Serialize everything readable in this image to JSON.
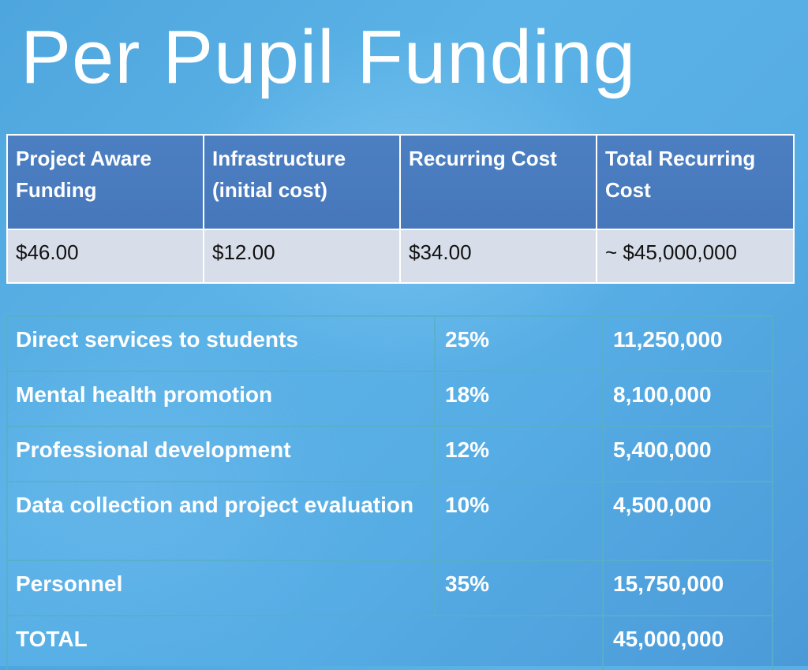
{
  "title": "Per Pupil Funding",
  "summary": {
    "headers": [
      "Project Aware Funding",
      "Infrastructure (initial cost)",
      "Recurring Cost",
      "Total Recurring Cost"
    ],
    "values": [
      "$46.00",
      "$12.00",
      "$34.00",
      "~ $45,000,000"
    ]
  },
  "allocation": {
    "rows": [
      {
        "label": "Direct services to students",
        "percent": "25%",
        "amount": "11,250,000"
      },
      {
        "label": "Mental health promotion",
        "percent": "18%",
        "amount": "8,100,000"
      },
      {
        "label": "Professional development",
        "percent": "12%",
        "amount": "5,400,000"
      },
      {
        "label": "Data collection and project evaluation",
        "percent": "10%",
        "amount": "4,500,000"
      },
      {
        "label": "Personnel",
        "percent": "35%",
        "amount": "15,750,000"
      }
    ],
    "total": {
      "label": "TOTAL",
      "amount": "45,000,000"
    }
  },
  "colors": {
    "background": "#55ace3",
    "header_fill": "#4a7bbf",
    "value_fill": "#d7dde9",
    "allocation_border": "#58afc8",
    "text_light": "#ffffff",
    "text_dark": "#111111"
  }
}
